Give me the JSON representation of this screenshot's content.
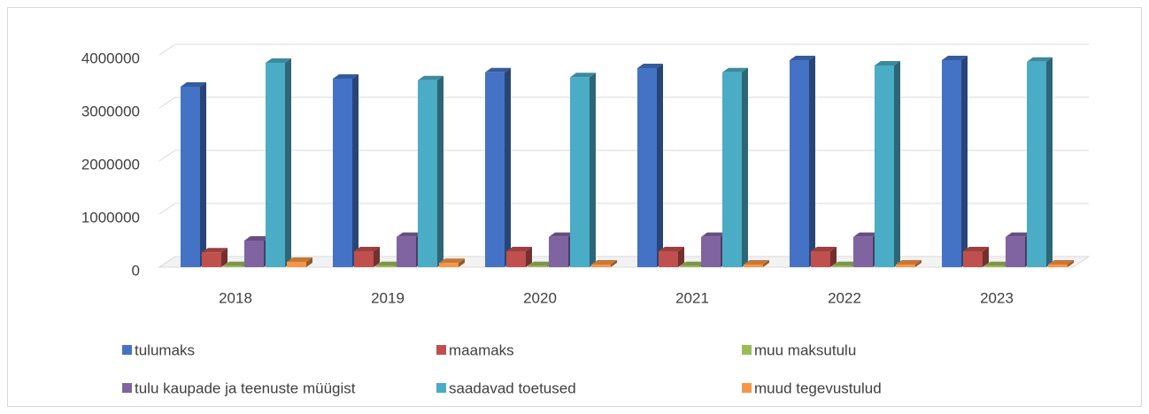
{
  "chart_data": {
    "type": "bar3d",
    "categories": [
      "2018",
      "2019",
      "2020",
      "2021",
      "2022",
      "2023"
    ],
    "series": [
      {
        "name": "tulumaks",
        "color": "#4472c4",
        "values": [
          3400000,
          3550000,
          3670000,
          3750000,
          3900000,
          3900000
        ]
      },
      {
        "name": "maamaks",
        "color": "#c0504d",
        "values": [
          280000,
          300000,
          300000,
          300000,
          300000,
          300000
        ]
      },
      {
        "name": "muu maksutulu",
        "color": "#9bbb59",
        "values": [
          20000,
          20000,
          20000,
          20000,
          20000,
          20000
        ]
      },
      {
        "name": "tulu kaupade ja teenuste müügist",
        "color": "#8064a2",
        "values": [
          500000,
          570000,
          570000,
          570000,
          570000,
          570000
        ]
      },
      {
        "name": "saadavad toetused",
        "color": "#4bacc6",
        "values": [
          3850000,
          3520000,
          3580000,
          3670000,
          3800000,
          3870000
        ]
      },
      {
        "name": "muud tegevustulud",
        "color": "#f79646",
        "values": [
          100000,
          80000,
          50000,
          50000,
          50000,
          50000
        ]
      }
    ],
    "ylim": [
      0,
      4000000
    ],
    "yticks": [
      0,
      1000000,
      2000000,
      3000000,
      4000000
    ],
    "grid": true,
    "legend": "bottom"
  }
}
